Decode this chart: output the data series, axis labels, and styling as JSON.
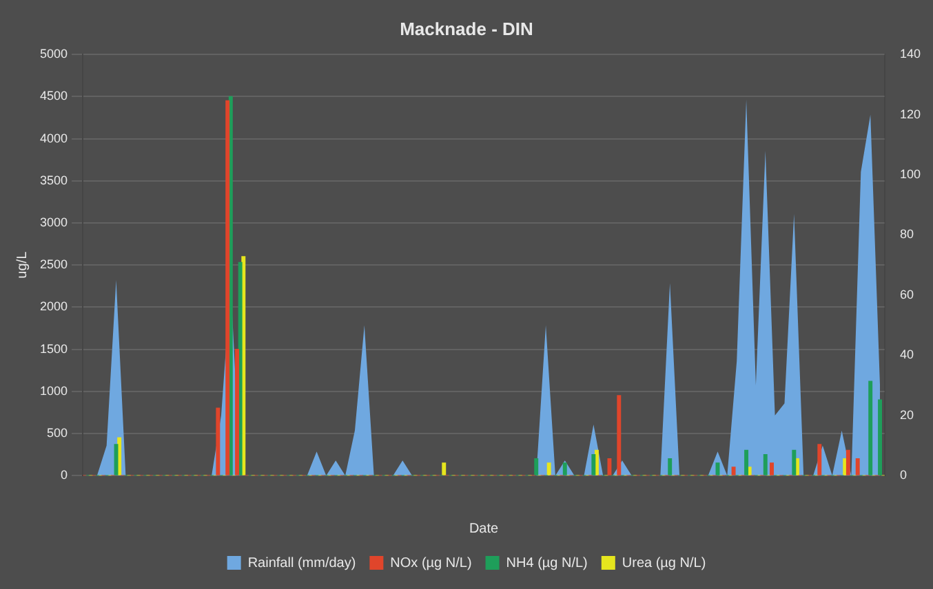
{
  "chart_data": {
    "type": "area",
    "title": "Macknade - DIN",
    "xlabel": "Date",
    "ylabel": "ug/L",
    "categories": [
      null,
      null,
      null,
      null,
      null,
      null,
      null,
      null,
      null,
      null,
      null,
      null,
      null,
      null,
      null,
      null,
      null,
      null,
      null,
      null,
      null,
      null,
      null,
      null,
      null,
      null,
      null,
      null,
      null,
      null,
      null,
      null,
      null,
      null,
      null,
      null,
      null,
      null,
      null,
      null,
      null,
      null,
      null,
      null,
      null,
      null,
      null,
      null,
      null,
      null,
      null,
      null,
      null,
      null,
      null,
      null,
      null,
      null,
      null,
      null,
      null,
      null,
      null,
      null,
      null,
      null,
      null,
      null,
      null,
      null,
      null,
      null,
      null,
      null,
      null,
      null,
      null,
      null,
      null,
      null,
      null,
      null,
      null,
      null
    ],
    "series": [
      {
        "name": "Rainfall (mm/day)",
        "color": "#6fa8e0",
        "axis": "y2",
        "values": [
          0,
          0,
          10,
          65,
          0,
          0,
          0,
          0,
          0,
          0,
          0,
          0,
          0,
          0,
          20,
          64,
          0,
          0,
          0,
          0,
          0,
          0,
          0,
          0,
          8,
          0,
          5,
          0,
          15,
          50,
          0,
          0,
          0,
          5,
          0,
          0,
          0,
          0,
          0,
          0,
          0,
          0,
          0,
          0,
          0,
          0,
          0,
          0,
          50,
          0,
          5,
          0,
          0,
          17,
          0,
          0,
          5,
          0,
          0,
          0,
          0,
          64,
          0,
          0,
          0,
          0,
          8,
          0,
          38,
          125,
          30,
          108,
          20,
          24,
          87,
          0,
          0,
          10,
          0,
          15,
          0,
          101,
          120,
          30
        ]
      },
      {
        "name": "NOx (µg N/L)",
        "type": "bar",
        "color": "#e0452b",
        "values": [
          0,
          0,
          0,
          0,
          0,
          0,
          0,
          0,
          0,
          0,
          0,
          0,
          0,
          0,
          800,
          4450,
          1500,
          0,
          0,
          0,
          0,
          0,
          0,
          0,
          0,
          0,
          0,
          0,
          0,
          0,
          0,
          0,
          0,
          0,
          0,
          0,
          0,
          0,
          0,
          0,
          0,
          0,
          0,
          0,
          0,
          0,
          0,
          0,
          0,
          0,
          0,
          0,
          0,
          0,
          0,
          200,
          950,
          0,
          0,
          0,
          0,
          0,
          0,
          0,
          0,
          0,
          0,
          0,
          100,
          0,
          0,
          0,
          150,
          0,
          0,
          0,
          0,
          370,
          0,
          0,
          300,
          200,
          0,
          0
        ]
      },
      {
        "name": "NH4 (µg N/L)",
        "type": "bar",
        "color": "#1e9e5a",
        "values": [
          0,
          0,
          0,
          370,
          0,
          0,
          0,
          0,
          0,
          0,
          0,
          0,
          0,
          0,
          0,
          4500,
          2530,
          0,
          0,
          0,
          0,
          0,
          0,
          0,
          0,
          0,
          0,
          0,
          0,
          0,
          0,
          0,
          0,
          0,
          0,
          0,
          0,
          0,
          0,
          0,
          0,
          0,
          0,
          0,
          0,
          0,
          0,
          200,
          0,
          0,
          150,
          0,
          0,
          250,
          0,
          0,
          0,
          0,
          0,
          0,
          0,
          200,
          0,
          0,
          0,
          0,
          150,
          0,
          0,
          300,
          0,
          250,
          0,
          0,
          300,
          0,
          0,
          0,
          0,
          0,
          0,
          0,
          1120,
          900
        ]
      },
      {
        "name": "Urea (µg N/L)",
        "type": "bar",
        "color": "#e6e61e",
        "values": [
          0,
          0,
          0,
          450,
          0,
          0,
          0,
          0,
          0,
          0,
          0,
          0,
          0,
          0,
          0,
          0,
          2600,
          0,
          0,
          0,
          0,
          0,
          0,
          0,
          0,
          0,
          0,
          0,
          0,
          0,
          0,
          0,
          0,
          0,
          0,
          0,
          0,
          150,
          0,
          0,
          0,
          0,
          0,
          0,
          0,
          0,
          0,
          0,
          150,
          0,
          0,
          0,
          0,
          300,
          0,
          0,
          0,
          0,
          0,
          0,
          0,
          0,
          0,
          0,
          0,
          0,
          0,
          0,
          0,
          100,
          0,
          0,
          0,
          0,
          200,
          0,
          0,
          0,
          0,
          200,
          0,
          0,
          0,
          0
        ]
      }
    ],
    "ylim": [
      0,
      5000
    ],
    "yticks": [
      0,
      500,
      1000,
      1500,
      2000,
      2500,
      3000,
      3500,
      4000,
      4500,
      5000
    ],
    "y2lim": [
      0,
      140
    ],
    "y2ticks": [
      0,
      20,
      40,
      60,
      80,
      100,
      120,
      140
    ],
    "grid": "y",
    "legend": "bottom"
  }
}
